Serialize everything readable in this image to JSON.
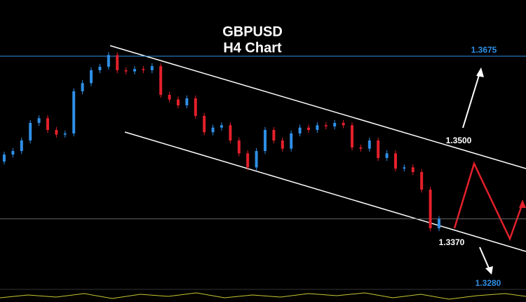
{
  "chart_data": {
    "type": "candlestick",
    "title": "GBPUSD",
    "subtitle": "H4 Chart",
    "open": [
      1.3495,
      1.3507,
      1.3513,
      1.3531,
      1.3561,
      1.3569,
      1.3549,
      1.3541,
      1.3543,
      1.3615,
      1.3629,
      1.3651,
      1.3657,
      1.3677,
      1.3651,
      1.3649,
      1.3653,
      1.3651,
      1.3658,
      1.3609,
      1.3601,
      1.3591,
      1.3603,
      1.3573,
      1.3545,
      1.3553,
      1.3557,
      1.3531,
      1.3509,
      1.3485,
      1.3513,
      1.3549,
      1.3531,
      1.3517,
      1.3543,
      1.3553,
      1.3549,
      1.3557,
      1.3555,
      1.3561,
      1.3557,
      1.3519,
      1.3517,
      1.3531,
      1.3501,
      1.3509,
      1.3483,
      1.3485,
      1.3477,
      1.3447,
      1.3381
    ],
    "high": [
      1.3512,
      1.3518,
      1.3536,
      1.3566,
      1.3574,
      1.3574,
      1.3554,
      1.3548,
      1.362,
      1.3634,
      1.3656,
      1.3662,
      1.3682,
      1.3682,
      1.3656,
      1.3658,
      1.3658,
      1.3663,
      1.3663,
      1.3614,
      1.3606,
      1.3608,
      1.3608,
      1.3578,
      1.3558,
      1.3562,
      1.3562,
      1.3536,
      1.3514,
      1.3518,
      1.3554,
      1.3554,
      1.3536,
      1.3548,
      1.3558,
      1.3558,
      1.3562,
      1.3562,
      1.3566,
      1.3566,
      1.3562,
      1.3524,
      1.3536,
      1.3536,
      1.3514,
      1.3514,
      1.349,
      1.349,
      1.3482,
      1.3452,
      1.3402
    ],
    "low": [
      1.349,
      1.3502,
      1.3508,
      1.3526,
      1.3556,
      1.3544,
      1.3536,
      1.3536,
      1.3538,
      1.361,
      1.3624,
      1.3646,
      1.3652,
      1.3646,
      1.3644,
      1.3644,
      1.3646,
      1.3646,
      1.3604,
      1.3596,
      1.3586,
      1.3586,
      1.3568,
      1.354,
      1.354,
      1.3548,
      1.3526,
      1.3504,
      1.348,
      1.348,
      1.3508,
      1.3526,
      1.3512,
      1.3512,
      1.3538,
      1.3544,
      1.3544,
      1.355,
      1.355,
      1.3552,
      1.3514,
      1.3512,
      1.3512,
      1.3496,
      1.3496,
      1.3478,
      1.3478,
      1.3472,
      1.3442,
      1.3376,
      1.3376
    ],
    "close": [
      1.3507,
      1.3513,
      1.3531,
      1.3561,
      1.3569,
      1.3549,
      1.3541,
      1.3543,
      1.3615,
      1.3629,
      1.3651,
      1.3657,
      1.3677,
      1.3651,
      1.3649,
      1.3653,
      1.3651,
      1.3658,
      1.3609,
      1.3601,
      1.3591,
      1.3603,
      1.3573,
      1.3545,
      1.3553,
      1.3557,
      1.3531,
      1.3509,
      1.3485,
      1.3513,
      1.3549,
      1.3531,
      1.3517,
      1.3543,
      1.3553,
      1.3549,
      1.3557,
      1.3555,
      1.3561,
      1.3557,
      1.3519,
      1.3517,
      1.3531,
      1.3501,
      1.3509,
      1.3483,
      1.3485,
      1.3477,
      1.3447,
      1.3381,
      1.3397
    ],
    "up_color": "#2f8fe6",
    "down_color": "#e3202b",
    "ylim": [
      1.3279,
      1.3771
    ],
    "resistance": {
      "value": 1.3675,
      "label": "1.3675",
      "color": "#2f8fe6"
    },
    "price_line": 1.3397,
    "levels": [
      {
        "value": 1.35,
        "label": "1.3500"
      },
      {
        "value": 1.337,
        "label": "1.3370"
      },
      {
        "value": 1.328,
        "label": "1.3280"
      }
    ]
  }
}
